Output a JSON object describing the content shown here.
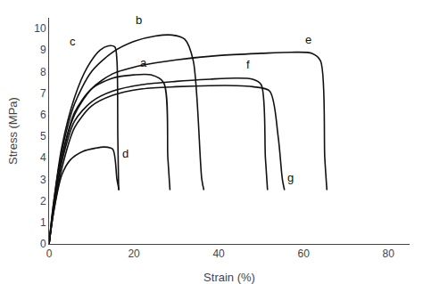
{
  "chart_data": {
    "type": "line",
    "xlabel": "Strain (%)",
    "ylabel": "Stress (MPa)",
    "color": "#111111",
    "grid": false,
    "series": [
      {
        "name": "c",
        "x": [
          0,
          1,
          3,
          6,
          9,
          12,
          14,
          15.5,
          16.0,
          16.2,
          16.4
        ],
        "values": [
          0,
          1.8,
          4.5,
          6.8,
          8.2,
          9.0,
          9.2,
          9.15,
          8.5,
          5.0,
          2.5
        ]
      },
      {
        "name": "b",
        "x": [
          0,
          1,
          3,
          6,
          10,
          15,
          20,
          25,
          29,
          32,
          34,
          36,
          36.5
        ],
        "values": [
          0,
          1.8,
          4.3,
          6.5,
          8.0,
          8.9,
          9.4,
          9.65,
          9.7,
          9.5,
          8.5,
          3.0,
          2.5
        ]
      },
      {
        "name": "a",
        "x": [
          0,
          1,
          3,
          6,
          10,
          15,
          20,
          24,
          27,
          28,
          28.5
        ],
        "values": [
          0,
          1.6,
          4.0,
          6.1,
          7.2,
          7.7,
          7.85,
          7.85,
          7.5,
          4.0,
          2.5
        ]
      },
      {
        "name": "d",
        "x": [
          0,
          1,
          3,
          5,
          8,
          11,
          13,
          15,
          16,
          16.5
        ],
        "values": [
          0,
          1.4,
          3.2,
          3.9,
          4.3,
          4.45,
          4.5,
          4.4,
          3.0,
          2.5
        ]
      },
      {
        "name": "f",
        "x": [
          0,
          1,
          3,
          6,
          10,
          15,
          22,
          30,
          38,
          44,
          48,
          50,
          51,
          51.5
        ],
        "values": [
          0,
          1.5,
          3.8,
          5.7,
          6.6,
          7.1,
          7.4,
          7.55,
          7.65,
          7.7,
          7.65,
          7.4,
          4.0,
          2.5
        ]
      },
      {
        "name": "e",
        "x": [
          0,
          1,
          3,
          6,
          10,
          15,
          22,
          30,
          40,
          50,
          57,
          62,
          64,
          65,
          65.5
        ],
        "values": [
          0,
          1.6,
          4.0,
          6.0,
          7.2,
          7.9,
          8.3,
          8.55,
          8.75,
          8.85,
          8.9,
          8.85,
          8.5,
          4.0,
          2.5
        ]
      },
      {
        "name": "g",
        "x": [
          0,
          1,
          3,
          6,
          10,
          15,
          22,
          30,
          38,
          44,
          48,
          52,
          54,
          55,
          55.5
        ],
        "values": [
          0,
          1.4,
          3.5,
          5.4,
          6.4,
          6.9,
          7.2,
          7.3,
          7.35,
          7.35,
          7.3,
          7.1,
          5.0,
          3.0,
          2.5
        ]
      }
    ],
    "annotations": [
      {
        "text": "c",
        "x": 4.5,
        "y": 9.0
      },
      {
        "text": "b",
        "x": 20,
        "y": 10.0
      },
      {
        "text": "a",
        "x": 21,
        "y": 8.0
      },
      {
        "text": "d",
        "x": 16.8,
        "y": 3.8
      },
      {
        "text": "f",
        "x": 46,
        "y": 7.95
      },
      {
        "text": "e",
        "x": 60,
        "y": 9.1
      },
      {
        "text": "g",
        "x": 55.7,
        "y": 2.7
      }
    ],
    "xlim": [
      0,
      85
    ],
    "ylim": [
      0,
      10.5
    ],
    "xticks": [
      0,
      20,
      40,
      60,
      80
    ],
    "yticks": [
      0,
      1,
      2,
      3,
      4,
      5,
      6,
      7,
      8,
      9,
      10
    ]
  }
}
